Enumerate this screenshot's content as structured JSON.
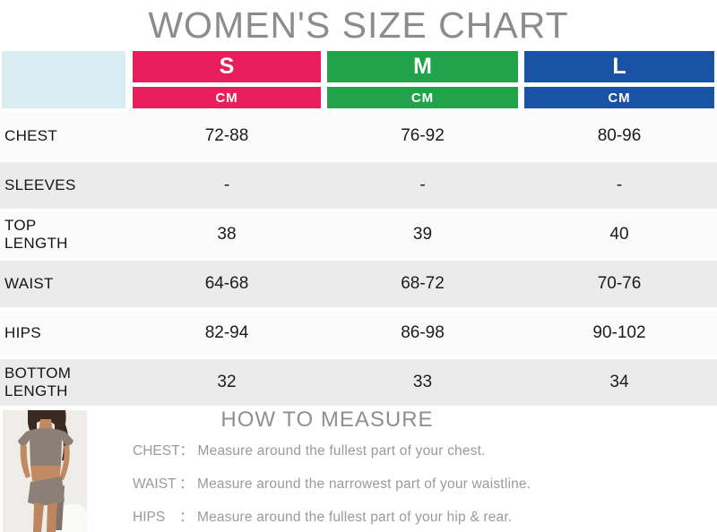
{
  "page_title": "WOMEN'S SIZE CHART",
  "colors": {
    "bands": [
      "#e91e5f",
      "#21a24b",
      "#1a53a5"
    ],
    "corner_cell": "#d9ecf2",
    "row_light": "#fbfbfb",
    "row_shaded": "#ebebeb",
    "title_gray": "#8c8c8c",
    "measure_gray": "#9a9a9a"
  },
  "chart_data": {
    "type": "table",
    "title": "WOMEN'S SIZE CHART",
    "unit": "CM",
    "columns": [
      "S",
      "M",
      "L"
    ],
    "rows": [
      {
        "label": "CHEST",
        "values": [
          "72-88",
          "76-92",
          "80-96"
        ]
      },
      {
        "label": "SLEEVES",
        "values": [
          "-",
          "-",
          "-"
        ]
      },
      {
        "label": "TOP LENGTH",
        "values": [
          "38",
          "39",
          "40"
        ]
      },
      {
        "label": "WAIST",
        "values": [
          "64-68",
          "68-72",
          "70-76"
        ]
      },
      {
        "label": "HIPS",
        "values": [
          "82-94",
          "86-98",
          "90-102"
        ]
      },
      {
        "label": "BOTTOM LENGTH",
        "values": [
          "32",
          "33",
          "34"
        ]
      }
    ]
  },
  "measure_section": {
    "title": "HOW TO MEASURE",
    "colon": "：",
    "items": [
      {
        "label": "CHEST",
        "text": "Measure around the fullest part of your chest."
      },
      {
        "label": "WAIST",
        "text": "Measure around the narrowest part of your waistline."
      },
      {
        "label": "HIPS",
        "text": "Measure around the fullest part of your hip & rear."
      }
    ]
  }
}
